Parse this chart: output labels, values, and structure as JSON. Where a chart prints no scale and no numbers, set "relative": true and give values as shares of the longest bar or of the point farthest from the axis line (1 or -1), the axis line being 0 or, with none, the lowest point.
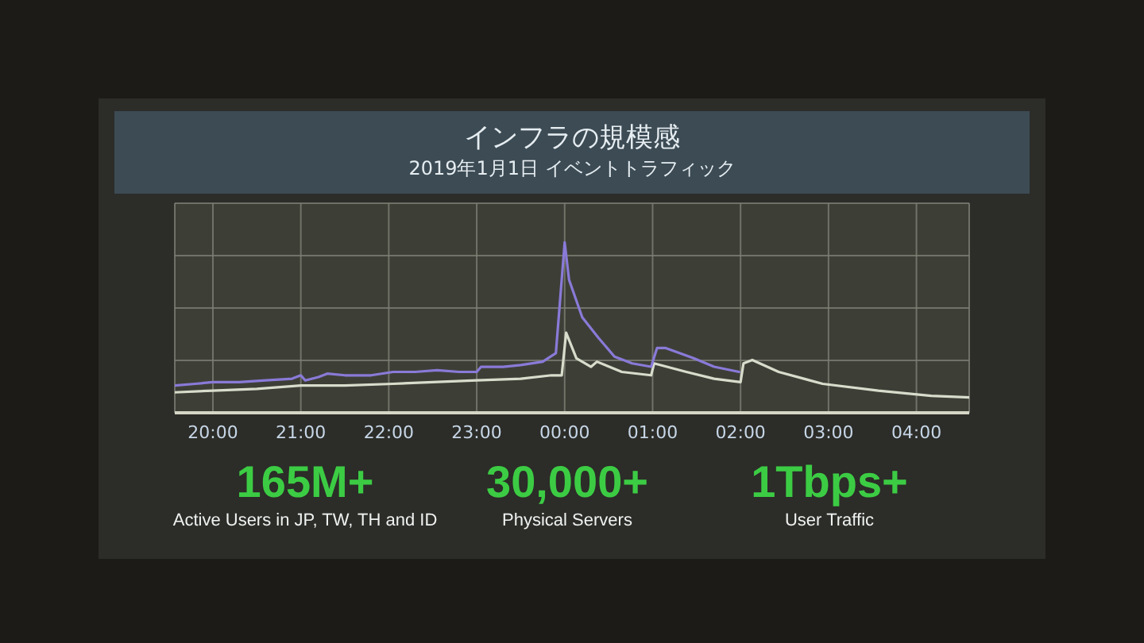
{
  "chart_data": [
    {
      "type": "line",
      "title": "インフラの規模感",
      "subtitle": "2019年1月1日 イベントトラフィック",
      "relative": true,
      "grid": true,
      "xlim": [
        "2018-12-31T19:34",
        "2019-01-01T04:36"
      ],
      "xticks": [
        {
          "value": "2018-12-31T20:00",
          "label": "20:00"
        },
        {
          "value": "2018-12-31T21:00",
          "label": "21:00"
        },
        {
          "value": "2018-12-31T22:00",
          "label": "22:00"
        },
        {
          "value": "2018-12-31T23:00",
          "label": "23:00"
        },
        {
          "value": "2019-01-01T00:00",
          "label": "00:00"
        },
        {
          "value": "2019-01-01T01:00",
          "label": "01:00"
        },
        {
          "value": "2019-01-01T02:00",
          "label": "02:00"
        },
        {
          "value": "2019-01-01T03:00",
          "label": "03:00"
        },
        {
          "value": "2019-01-01T04:00",
          "label": "04:00"
        }
      ],
      "series": [
        {
          "color": "#d8dccb",
          "x": [
            "2018-12-31T19:34",
            "2018-12-31T20:00",
            "2018-12-31T20:30",
            "2018-12-31T21:00",
            "2018-12-31T21:30",
            "2018-12-31T22:03",
            "2018-12-31T22:30",
            "2018-12-31T23:00",
            "2018-12-31T23:30",
            "2018-12-31T23:51",
            "2018-12-31T23:58",
            "2019-01-01T00:01",
            "2019-01-01T00:08",
            "2019-01-01T00:18",
            "2019-01-01T00:22",
            "2019-01-01T00:39",
            "2019-01-01T00:59",
            "2019-01-01T01:01",
            "2019-01-01T01:23",
            "2019-01-01T01:42",
            "2019-01-01T02:00",
            "2019-01-01T02:02",
            "2019-01-01T02:08",
            "2019-01-01T02:26",
            "2019-01-01T02:56",
            "2019-01-01T03:34",
            "2019-01-01T04:10",
            "2019-01-01T04:36"
          ],
          "values": [
            0.12,
            0.13,
            0.14,
            0.16,
            0.16,
            0.17,
            0.18,
            0.19,
            0.2,
            0.22,
            0.22,
            0.47,
            0.32,
            0.27,
            0.3,
            0.24,
            0.22,
            0.29,
            0.24,
            0.2,
            0.18,
            0.29,
            0.31,
            0.24,
            0.17,
            0.13,
            0.1,
            0.09
          ]
        },
        {
          "color": "#8a7ad8",
          "x": [
            "2018-12-31T19:34",
            "2018-12-31T19:48",
            "2018-12-31T20:00",
            "2018-12-31T20:18",
            "2018-12-31T20:36",
            "2018-12-31T20:54",
            "2018-12-31T21:00",
            "2018-12-31T21:03",
            "2018-12-31T21:12",
            "2018-12-31T21:18",
            "2018-12-31T21:30",
            "2018-12-31T21:48",
            "2018-12-31T22:03",
            "2018-12-31T22:18",
            "2018-12-31T22:33",
            "2018-12-31T22:48",
            "2018-12-31T23:00",
            "2018-12-31T23:03",
            "2018-12-31T23:18",
            "2018-12-31T23:30",
            "2018-12-31T23:45",
            "2018-12-31T23:54",
            "2019-01-01T00:00",
            "2019-01-01T00:03",
            "2019-01-01T00:12",
            "2019-01-01T00:23",
            "2019-01-01T00:34",
            "2019-01-01T00:46",
            "2019-01-01T00:59",
            "2019-01-01T01:03",
            "2019-01-01T01:09",
            "2019-01-01T01:28",
            "2019-01-01T01:42",
            "2019-01-01T01:59"
          ],
          "values": [
            0.16,
            0.17,
            0.18,
            0.18,
            0.19,
            0.2,
            0.22,
            0.19,
            0.21,
            0.23,
            0.22,
            0.22,
            0.24,
            0.24,
            0.25,
            0.24,
            0.24,
            0.27,
            0.27,
            0.28,
            0.3,
            0.35,
            1.0,
            0.78,
            0.56,
            0.44,
            0.33,
            0.29,
            0.27,
            0.38,
            0.38,
            0.32,
            0.27,
            0.24
          ]
        }
      ]
    },
    {
      "type": "other",
      "annotations": [
        "165M+",
        "Active Users in JP, TW, TH and ID",
        "30,000+",
        "Physical Servers",
        "1Tbps+",
        "User Traffic"
      ]
    }
  ]
}
